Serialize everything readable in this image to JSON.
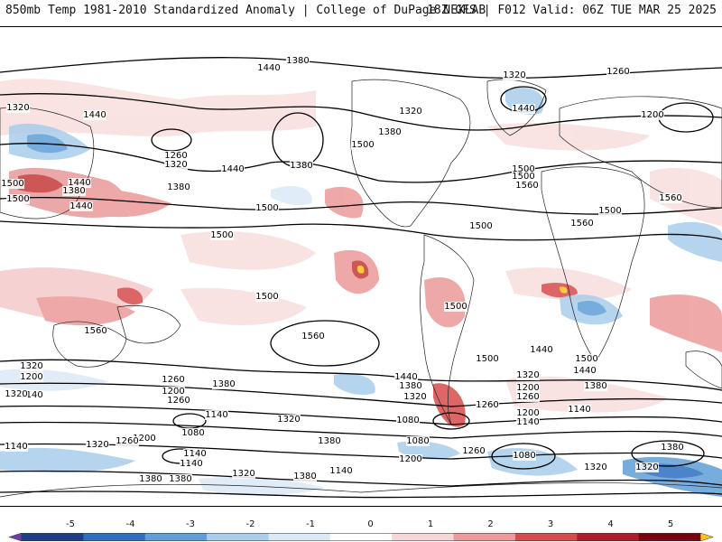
{
  "header": {
    "title": "850mb Temp 1981-2010 Standardized Anomaly | College of DuPage NEXLAB",
    "run_info": "18Z GFS | F012 Valid: 06Z TUE MAR 25 2025"
  },
  "contour_labels": [
    "1380",
    "1440",
    "1320",
    "1260",
    "1320",
    "1440",
    "1440",
    "1320",
    "1380",
    "1500",
    "1260",
    "1320",
    "1380",
    "1440",
    "1380",
    "1500",
    "1440",
    "1500",
    "1500",
    "1560",
    "1500",
    "1380",
    "1440",
    "1560",
    "1560",
    "1500",
    "1200",
    "1500",
    "1500",
    "1500",
    "1500",
    "1560",
    "1560",
    "1500",
    "1440",
    "1380",
    "1320",
    "1500",
    "1440",
    "1380",
    "1320",
    "1200",
    "1140",
    "1260",
    "1200",
    "1140",
    "1320",
    "1200",
    "1260",
    "1380",
    "1440",
    "1500",
    "1320",
    "1260",
    "1200",
    "1140",
    "1080",
    "1140",
    "1080",
    "1080",
    "1140",
    "1200",
    "1260",
    "1320",
    "1260",
    "1320",
    "1080",
    "1140",
    "1200",
    "1380",
    "1140",
    "1140",
    "1320",
    "1260",
    "1380",
    "1380",
    "1320",
    "1380",
    "1320",
    "1380"
  ],
  "colorbar": {
    "ticks": [
      "-5",
      "-4",
      "-3",
      "-2",
      "-1",
      "0",
      "1",
      "2",
      "3",
      "4",
      "5"
    ],
    "colors": [
      "#6f3fa8",
      "#1f3c88",
      "#2f6fbf",
      "#5f9fd8",
      "#a9cdeb",
      "#dbe9f6",
      "#ffffff",
      "#f6d7d7",
      "#ec9a9a",
      "#d74b4b",
      "#b01e2a",
      "#7a0010",
      "#ffc21a"
    ]
  }
}
